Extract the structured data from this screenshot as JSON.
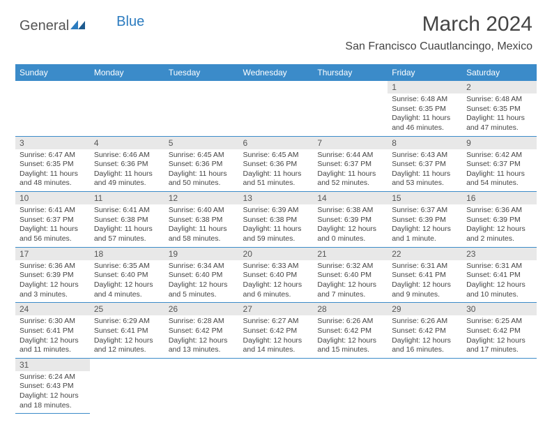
{
  "logo": {
    "part1": "General",
    "part2": "Blue"
  },
  "title": "March 2024",
  "location": "San Francisco Cuautlancingo, Mexico",
  "colors": {
    "header_bg": "#3b8bc9",
    "header_text": "#ffffff",
    "daynum_bg": "#e8e8e8",
    "text": "#444444",
    "rule": "#3b8bc9"
  },
  "daynames": [
    "Sunday",
    "Monday",
    "Tuesday",
    "Wednesday",
    "Thursday",
    "Friday",
    "Saturday"
  ],
  "weeks": [
    [
      null,
      null,
      null,
      null,
      null,
      {
        "n": "1",
        "sr": "6:48 AM",
        "ss": "6:35 PM",
        "dl": "11 hours and 46 minutes."
      },
      {
        "n": "2",
        "sr": "6:48 AM",
        "ss": "6:35 PM",
        "dl": "11 hours and 47 minutes."
      }
    ],
    [
      {
        "n": "3",
        "sr": "6:47 AM",
        "ss": "6:35 PM",
        "dl": "11 hours and 48 minutes."
      },
      {
        "n": "4",
        "sr": "6:46 AM",
        "ss": "6:36 PM",
        "dl": "11 hours and 49 minutes."
      },
      {
        "n": "5",
        "sr": "6:45 AM",
        "ss": "6:36 PM",
        "dl": "11 hours and 50 minutes."
      },
      {
        "n": "6",
        "sr": "6:45 AM",
        "ss": "6:36 PM",
        "dl": "11 hours and 51 minutes."
      },
      {
        "n": "7",
        "sr": "6:44 AM",
        "ss": "6:37 PM",
        "dl": "11 hours and 52 minutes."
      },
      {
        "n": "8",
        "sr": "6:43 AM",
        "ss": "6:37 PM",
        "dl": "11 hours and 53 minutes."
      },
      {
        "n": "9",
        "sr": "6:42 AM",
        "ss": "6:37 PM",
        "dl": "11 hours and 54 minutes."
      }
    ],
    [
      {
        "n": "10",
        "sr": "6:41 AM",
        "ss": "6:37 PM",
        "dl": "11 hours and 56 minutes."
      },
      {
        "n": "11",
        "sr": "6:41 AM",
        "ss": "6:38 PM",
        "dl": "11 hours and 57 minutes."
      },
      {
        "n": "12",
        "sr": "6:40 AM",
        "ss": "6:38 PM",
        "dl": "11 hours and 58 minutes."
      },
      {
        "n": "13",
        "sr": "6:39 AM",
        "ss": "6:38 PM",
        "dl": "11 hours and 59 minutes."
      },
      {
        "n": "14",
        "sr": "6:38 AM",
        "ss": "6:39 PM",
        "dl": "12 hours and 0 minutes."
      },
      {
        "n": "15",
        "sr": "6:37 AM",
        "ss": "6:39 PM",
        "dl": "12 hours and 1 minute."
      },
      {
        "n": "16",
        "sr": "6:36 AM",
        "ss": "6:39 PM",
        "dl": "12 hours and 2 minutes."
      }
    ],
    [
      {
        "n": "17",
        "sr": "6:36 AM",
        "ss": "6:39 PM",
        "dl": "12 hours and 3 minutes."
      },
      {
        "n": "18",
        "sr": "6:35 AM",
        "ss": "6:40 PM",
        "dl": "12 hours and 4 minutes."
      },
      {
        "n": "19",
        "sr": "6:34 AM",
        "ss": "6:40 PM",
        "dl": "12 hours and 5 minutes."
      },
      {
        "n": "20",
        "sr": "6:33 AM",
        "ss": "6:40 PM",
        "dl": "12 hours and 6 minutes."
      },
      {
        "n": "21",
        "sr": "6:32 AM",
        "ss": "6:40 PM",
        "dl": "12 hours and 7 minutes."
      },
      {
        "n": "22",
        "sr": "6:31 AM",
        "ss": "6:41 PM",
        "dl": "12 hours and 9 minutes."
      },
      {
        "n": "23",
        "sr": "6:31 AM",
        "ss": "6:41 PM",
        "dl": "12 hours and 10 minutes."
      }
    ],
    [
      {
        "n": "24",
        "sr": "6:30 AM",
        "ss": "6:41 PM",
        "dl": "12 hours and 11 minutes."
      },
      {
        "n": "25",
        "sr": "6:29 AM",
        "ss": "6:41 PM",
        "dl": "12 hours and 12 minutes."
      },
      {
        "n": "26",
        "sr": "6:28 AM",
        "ss": "6:42 PM",
        "dl": "12 hours and 13 minutes."
      },
      {
        "n": "27",
        "sr": "6:27 AM",
        "ss": "6:42 PM",
        "dl": "12 hours and 14 minutes."
      },
      {
        "n": "28",
        "sr": "6:26 AM",
        "ss": "6:42 PM",
        "dl": "12 hours and 15 minutes."
      },
      {
        "n": "29",
        "sr": "6:26 AM",
        "ss": "6:42 PM",
        "dl": "12 hours and 16 minutes."
      },
      {
        "n": "30",
        "sr": "6:25 AM",
        "ss": "6:42 PM",
        "dl": "12 hours and 17 minutes."
      }
    ],
    [
      {
        "n": "31",
        "sr": "6:24 AM",
        "ss": "6:43 PM",
        "dl": "12 hours and 18 minutes."
      },
      null,
      null,
      null,
      null,
      null,
      null
    ]
  ],
  "labels": {
    "sunrise": "Sunrise:",
    "sunset": "Sunset:",
    "daylight": "Daylight:"
  }
}
